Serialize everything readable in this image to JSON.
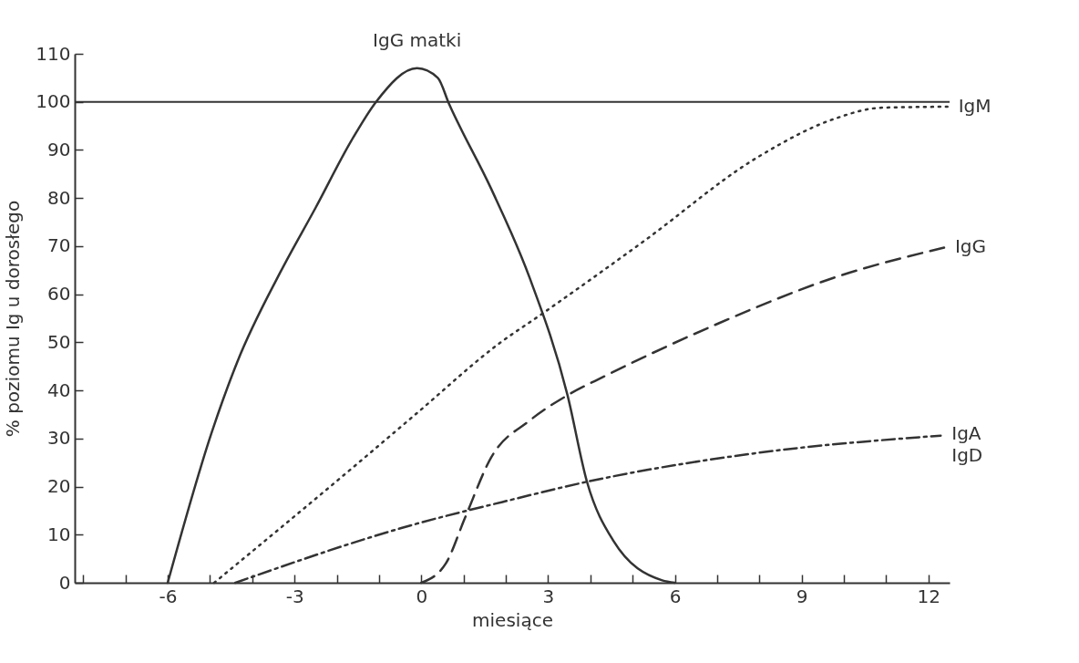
{
  "chart_data": {
    "type": "line",
    "xlabel": "miesiące",
    "ylabel": "% poziomu Ig u dorosłego",
    "xlim": [
      -8.2,
      12.5
    ],
    "ylim": [
      0,
      110
    ],
    "xticks": [
      {
        "value": -8,
        "label": null
      },
      {
        "value": -7,
        "label": null
      },
      -6,
      {
        "value": -5,
        "label": null
      },
      {
        "value": -4,
        "label": null
      },
      -3,
      {
        "value": -2,
        "label": null
      },
      {
        "value": -1,
        "label": null
      },
      0,
      {
        "value": 1,
        "label": null
      },
      {
        "value": 2,
        "label": null
      },
      3,
      {
        "value": 4,
        "label": null
      },
      {
        "value": 5,
        "label": null
      },
      6,
      {
        "value": 7,
        "label": null
      },
      {
        "value": 8,
        "label": null
      },
      9,
      {
        "value": 10,
        "label": null
      },
      {
        "value": 11,
        "label": null
      },
      12
    ],
    "yticks": [
      0,
      10,
      20,
      30,
      40,
      50,
      60,
      70,
      80,
      90,
      100,
      110
    ],
    "grid": false,
    "marker": "none",
    "ref_lines": [
      {
        "axis": "y",
        "value": 100,
        "color": "#333333"
      }
    ],
    "series": [
      {
        "name": "IgG matki",
        "color": "#333333",
        "line_style": "solid",
        "x": [
          -6,
          -4.95,
          -4.35,
          -3.34,
          -2.5,
          -1.65,
          -1.07,
          -0.1,
          0.39,
          0.66,
          1.65,
          2.56,
          3.46,
          3.92,
          4.54,
          5.7,
          6
        ],
        "values": [
          0,
          31.5,
          46,
          64.5,
          78,
          92,
          100,
          107,
          105,
          99.5,
          82,
          63.5,
          39,
          21,
          8.8,
          0.5,
          0
        ]
      },
      {
        "name": "IgM",
        "color": "#333333",
        "line_style": "dotted",
        "x": [
          -4.9,
          -1.48,
          -0.14,
          1.88,
          2.82,
          5.26,
          7.96,
          9.75,
          10.9,
          12.45
        ],
        "values": [
          0,
          25,
          35,
          50,
          55.7,
          71,
          88.5,
          96.4,
          98.8,
          99
        ]
      },
      {
        "name": "IgG",
        "color": "#333333",
        "line_style": "dashed",
        "x": [
          0,
          0.58,
          1.03,
          1.65,
          2.56,
          3.46,
          4.35,
          7.05,
          9.75,
          12.37
        ],
        "values": [
          0,
          4,
          13.4,
          26,
          33.7,
          39,
          43,
          54,
          63.4,
          69.7
        ]
      },
      {
        "name": "IgA\nIgD",
        "color": "#333333",
        "line_style": "dashdot",
        "x": [
          -4.4,
          -0.14,
          1.92,
          3.92,
          7.96,
          12.29
        ],
        "values": [
          0,
          12.2,
          16.8,
          21,
          27,
          30.6
        ]
      }
    ]
  }
}
